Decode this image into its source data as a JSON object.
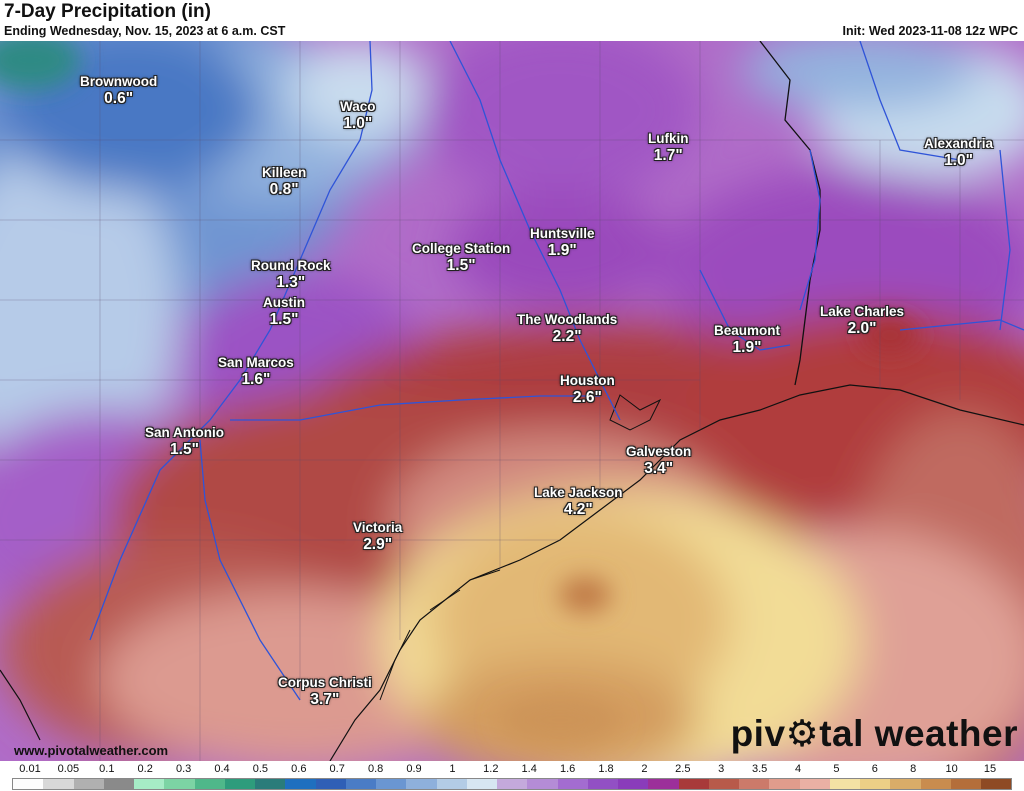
{
  "header": {
    "title": "7-Day Precipitation (in)",
    "subtitle": "Ending Wednesday, Nov. 15, 2023 at 6 a.m. CST",
    "init": "Init: Wed 2023-11-08 12z WPC"
  },
  "map": {
    "cities": [
      {
        "name": "Brownwood",
        "value": "0.6\""
      },
      {
        "name": "Waco",
        "value": "1.0\""
      },
      {
        "name": "Killeen",
        "value": "0.8\""
      },
      {
        "name": "Lufkin",
        "value": "1.7\""
      },
      {
        "name": "Alexandria",
        "value": "1.0\""
      },
      {
        "name": "Huntsville",
        "value": "1.9\""
      },
      {
        "name": "College Station",
        "value": "1.5\""
      },
      {
        "name": "Round Rock",
        "value": "1.3\""
      },
      {
        "name": "Austin",
        "value": "1.5\""
      },
      {
        "name": "The Woodlands",
        "value": "2.2\""
      },
      {
        "name": "Beaumont",
        "value": "1.9\""
      },
      {
        "name": "Lake Charles",
        "value": "2.0\""
      },
      {
        "name": "San Marcos",
        "value": "1.6\""
      },
      {
        "name": "Houston",
        "value": "2.6\""
      },
      {
        "name": "San Antonio",
        "value": "1.5\""
      },
      {
        "name": "Galveston",
        "value": "3.4\""
      },
      {
        "name": "Lake Jackson",
        "value": "4.2\""
      },
      {
        "name": "Victoria",
        "value": "2.9\""
      },
      {
        "name": "Corpus Christi",
        "value": "3.7\""
      }
    ]
  },
  "footer": {
    "website": "www.pivotalweather.com",
    "brand_left": "piv",
    "brand_right": "tal weather"
  },
  "legend": {
    "labels": [
      "0.01",
      "0.05",
      "0.1",
      "0.2",
      "0.3",
      "0.4",
      "0.5",
      "0.6",
      "0.7",
      "0.8",
      "0.9",
      "1",
      "1.2",
      "1.4",
      "1.6",
      "1.8",
      "2",
      "2.5",
      "3",
      "3.5",
      "4",
      "5",
      "6",
      "8",
      "10",
      "15"
    ],
    "colors": [
      "#fdfdfd",
      "#d8d8d8",
      "#b0b0b0",
      "#8a8a8a",
      "#a6ecc6",
      "#7cd4a4",
      "#4fb88a",
      "#2e9c7c",
      "#2a7c7a",
      "#1f6fbf",
      "#2f5fb6",
      "#4a7cc6",
      "#6a96d2",
      "#8eb0dc",
      "#b3cce6",
      "#d7e6f2",
      "#c4a9dc",
      "#b48cd6",
      "#a36cd0",
      "#9250c4",
      "#8a3cba",
      "#9c2f9a",
      "#a83a3a",
      "#b85a4a",
      "#cc7a6a",
      "#e09c8c",
      "#eab0a4",
      "#f4e2a4",
      "#eccf86",
      "#d9ac68",
      "#c98c4e",
      "#b46e3a",
      "#8e4a24"
    ]
  }
}
